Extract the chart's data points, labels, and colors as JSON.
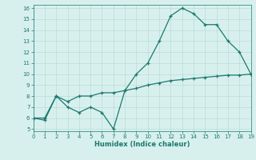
{
  "xlabel": "Humidex (Indice chaleur)",
  "x": [
    0,
    1,
    2,
    3,
    4,
    5,
    6,
    7,
    8,
    9,
    10,
    11,
    12,
    13,
    14,
    15,
    16,
    17,
    18,
    19
  ],
  "line1_y": [
    6,
    6,
    8,
    7,
    6.5,
    7,
    6.5,
    5,
    8.5,
    10,
    11,
    13,
    15.3,
    16,
    15.5,
    14.5,
    14.5,
    13,
    12,
    10
  ],
  "line2_y": [
    6,
    5.8,
    8,
    7.5,
    8,
    8,
    8.3,
    8.3,
    8.5,
    8.7,
    9.0,
    9.2,
    9.4,
    9.5,
    9.6,
    9.7,
    9.8,
    9.9,
    9.9,
    10
  ],
  "line_color": "#1a7a6e",
  "bg_color": "#d8f0ed",
  "grid_color": "#b8ddd8",
  "xlim": [
    0,
    19
  ],
  "ylim": [
    4.8,
    16.3
  ],
  "xticks": [
    0,
    1,
    2,
    3,
    4,
    5,
    6,
    7,
    8,
    9,
    10,
    11,
    12,
    13,
    14,
    15,
    16,
    17,
    18,
    19
  ],
  "yticks": [
    5,
    6,
    7,
    8,
    9,
    10,
    11,
    12,
    13,
    14,
    15,
    16
  ]
}
